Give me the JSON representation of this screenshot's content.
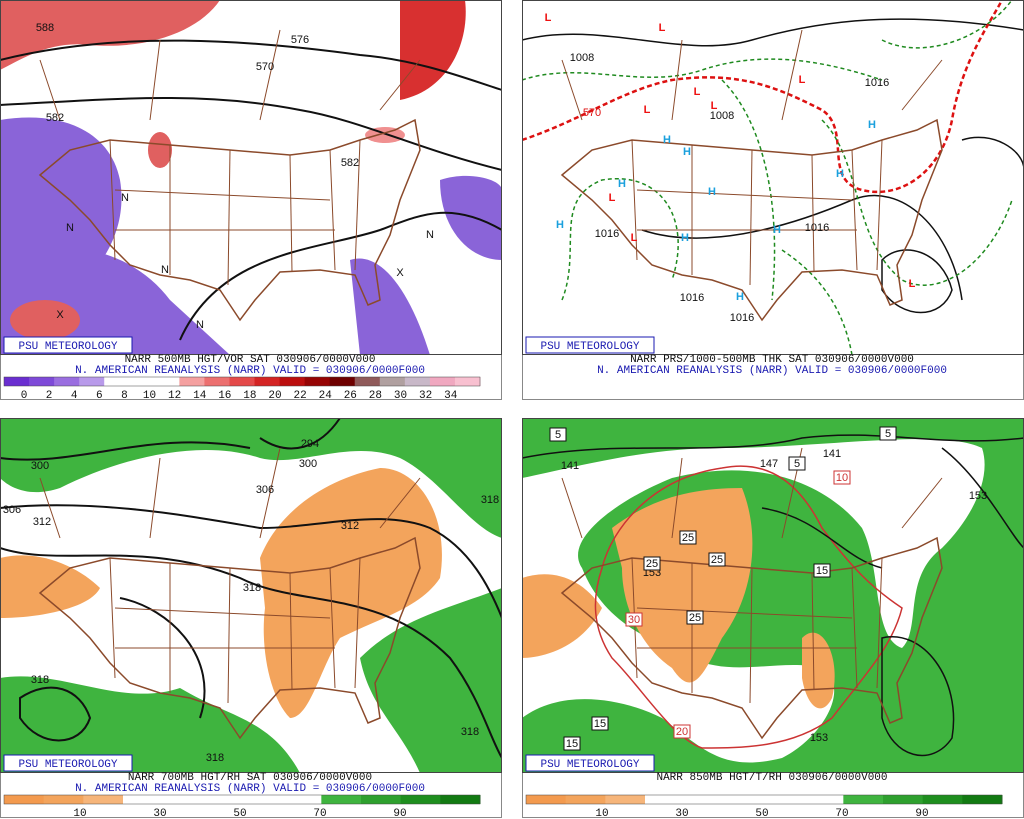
{
  "panels": [
    {
      "badge": "PSU METEOROLOGY",
      "title": "NARR 500MB HGT/VOR SAT 030906/0000V000",
      "subtitle": "N. AMERICAN REANALYSIS (NARR) VALID = 030906/0000F000",
      "colorbar_labels": [
        "0",
        "2",
        "4",
        "6",
        "8",
        "10",
        "12",
        "14",
        "16",
        "18",
        "20",
        "22",
        "24",
        "26",
        "28",
        "30",
        "32",
        "34"
      ],
      "map_labels": [
        "588",
        "576",
        "570",
        "582",
        "582",
        "N",
        "N",
        "N",
        "N",
        "X",
        "X",
        "N"
      ]
    },
    {
      "badge": "PSU METEOROLOGY",
      "title": "NARR PRS/1000-500MB THK SAT 030906/0000V000",
      "subtitle": "N. AMERICAN REANALYSIS (NARR) VALID = 030906/0000F000",
      "colorbar_labels": [],
      "map_labels": [
        "1008",
        "1008",
        "1016",
        "1016",
        "1016",
        "1016",
        "1016",
        "570",
        "L",
        "L",
        "L",
        "L",
        "L",
        "L",
        "L",
        "L",
        "L",
        "H",
        "H",
        "H",
        "H",
        "H",
        "H",
        "H",
        "H",
        "H",
        "H"
      ]
    },
    {
      "badge": "PSU METEOROLOGY",
      "title": "NARR 700MB HGT/RH SAT 030906/0000V000",
      "subtitle": "N. AMERICAN REANALYSIS (NARR) VALID = 030906/0000F000",
      "colorbar_labels": [
        "10",
        "30",
        "50",
        "70",
        "90"
      ],
      "map_labels": [
        "300",
        "306",
        "312",
        "294",
        "300",
        "306",
        "312",
        "318",
        "318",
        "318",
        "318",
        "318"
      ]
    },
    {
      "badge": "PSU METEOROLOGY",
      "title": "NARR 850MB HGT/T/RH 030906/0000V000",
      "subtitle": "",
      "colorbar_labels": [
        "10",
        "30",
        "50",
        "70",
        "90"
      ],
      "map_labels": [
        "141",
        "147",
        "153",
        "141",
        "153",
        "153",
        "5",
        "5",
        "5",
        "10",
        "15",
        "15",
        "15",
        "20",
        "25",
        "25",
        "25",
        "25",
        "30"
      ]
    }
  ]
}
